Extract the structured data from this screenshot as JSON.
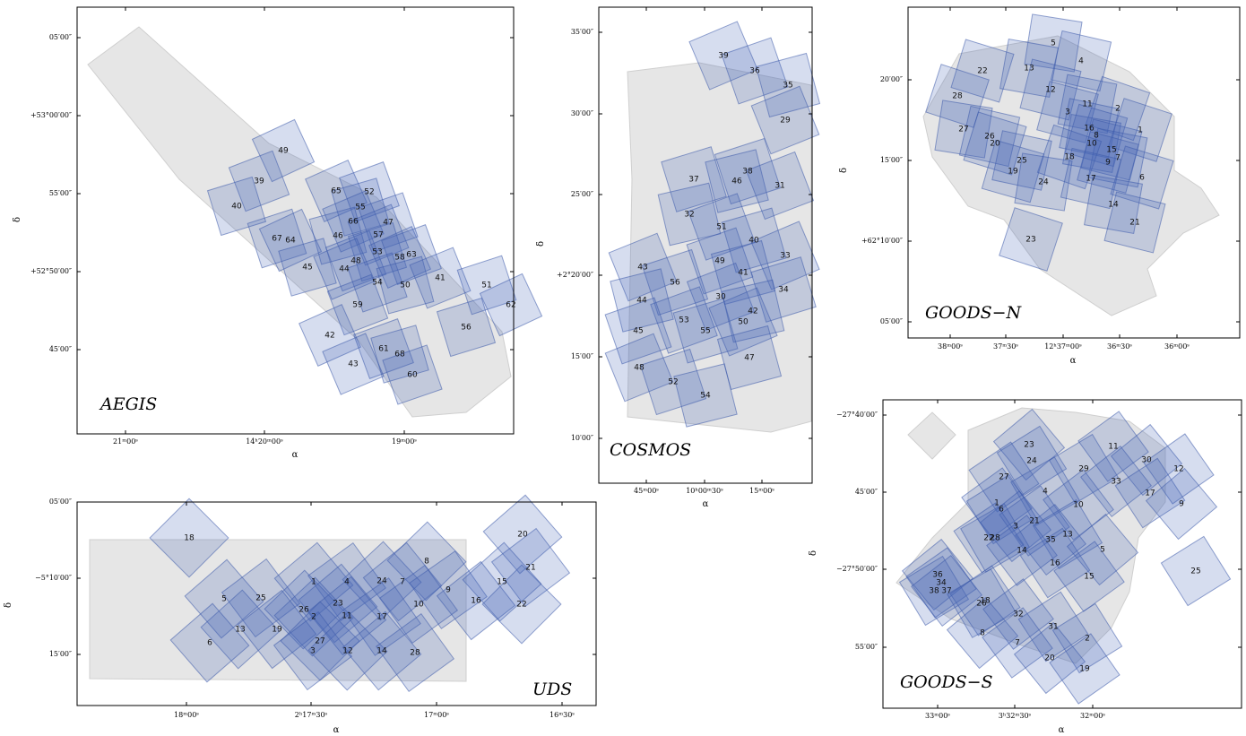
{
  "panels": [
    {
      "title": "AEGIS",
      "x_label": "α",
      "y_label": "δ",
      "x_ticks": [
        "21ᵐ00ˢ",
        "14ʰ20ᵐ00ˢ",
        "19ᵐ00ˢ"
      ],
      "y_ticks": [
        "05′00″",
        "+53°00′00″",
        "55′00″",
        "+52°50′00″",
        "45′00″"
      ],
      "pointings": [
        "49",
        "39",
        "40",
        "65",
        "52",
        "55",
        "66",
        "47",
        "46",
        "57",
        "67",
        "64",
        "48",
        "53",
        "58",
        "63",
        "45",
        "44",
        "54",
        "50",
        "41",
        "51",
        "62",
        "59",
        "56",
        "42",
        "61",
        "68",
        "43",
        "60"
      ]
    },
    {
      "title": "COSMOS",
      "x_label": "α",
      "y_label": "δ",
      "x_ticks": [
        "45ᵐ00ˢ",
        "10ʰ00ᵐ30ˢ",
        "15ᵐ00ˢ"
      ],
      "y_ticks": [
        "35′00″",
        "30′00″",
        "25′00″",
        "+2°20′00″",
        "15′00″",
        "10′00″"
      ],
      "pointings": [
        "39",
        "36",
        "35",
        "29",
        "38",
        "46",
        "31",
        "37",
        "32",
        "51",
        "40",
        "33",
        "49",
        "41",
        "43",
        "56",
        "44",
        "30",
        "34",
        "42",
        "53",
        "55",
        "50",
        "45",
        "47",
        "48",
        "52",
        "54"
      ]
    },
    {
      "title": "GOODS−N",
      "x_label": "α",
      "y_label": "δ",
      "x_ticks": [
        "38ᵐ00ˢ",
        "37ᵐ30ˢ",
        "12ʰ37ᵐ00ˢ",
        "36ᵐ30ˢ",
        "36ᵐ00ˢ"
      ],
      "y_ticks": [
        "20′00″",
        "15′00″",
        "+62°10′00″",
        "05′00″"
      ],
      "pointings": [
        "5",
        "4",
        "22",
        "13",
        "12",
        "28",
        "11",
        "3",
        "2",
        "16",
        "8",
        "27",
        "26",
        "20",
        "10",
        "15",
        "1",
        "7",
        "9",
        "18",
        "25",
        "19",
        "24",
        "17",
        "6",
        "14",
        "21",
        "23"
      ]
    },
    {
      "title": "GOODS−S",
      "x_label": "α",
      "y_label": "δ",
      "x_ticks": [
        "33ᵐ00ˢ",
        "3ʰ32ᵐ30ˢ",
        "32ᵐ00ˢ"
      ],
      "y_ticks": [
        "−27°40′00″",
        "45′00″",
        "−27°50′00″",
        "55′00″"
      ],
      "pointings": [
        "23",
        "11",
        "24",
        "30",
        "12",
        "29",
        "33",
        "27",
        "4",
        "10",
        "17",
        "9",
        "1",
        "6",
        "3",
        "21",
        "13",
        "35",
        "22",
        "28",
        "14",
        "16",
        "5",
        "15",
        "25",
        "36",
        "34",
        "38",
        "37",
        "18",
        "26",
        "32",
        "31",
        "8",
        "7",
        "2",
        "20",
        "19"
      ]
    },
    {
      "title": "UDS",
      "x_label": "α",
      "y_label": "δ",
      "x_ticks": [
        "18ᵐ00ˢ",
        "2ʰ17ᵐ30ˢ",
        "17ᵐ00ˢ",
        "16ᵐ30ˢ"
      ],
      "y_ticks": [
        "05′00″",
        "−5°10′00″",
        "15′00″"
      ],
      "pointings": [
        "18",
        "20",
        "21",
        "8",
        "1",
        "4",
        "24",
        "7",
        "9",
        "15",
        "16",
        "22",
        "5",
        "25",
        "26",
        "23",
        "10",
        "2",
        "11",
        "17",
        "13",
        "19",
        "27",
        "6",
        "3",
        "12",
        "14",
        "28"
      ]
    }
  ]
}
